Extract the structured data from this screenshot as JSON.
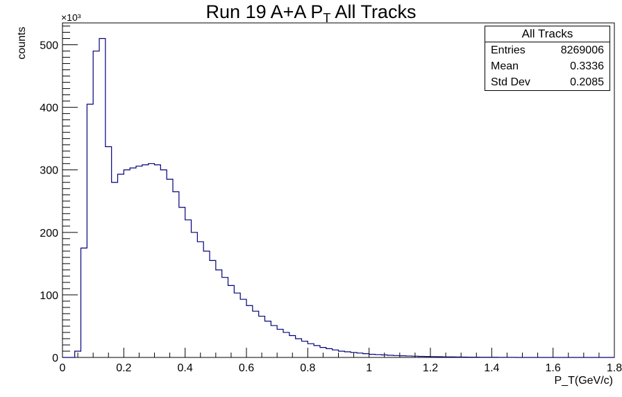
{
  "title": {
    "main": "Run 19 A+A P",
    "sub": "T",
    "rest": " All Tracks"
  },
  "stats": {
    "name": "All Tracks",
    "rows": [
      {
        "label": "Entries",
        "value": "8269006"
      },
      {
        "label": "Mean",
        "value": "0.3336"
      },
      {
        "label": "Std Dev",
        "value": "0.2085"
      }
    ]
  },
  "chart_data": {
    "type": "histogram",
    "title": "Run 19 A+A P_T All Tracks",
    "xlabel": "P_T(GeV/c)",
    "ylabel": "counts",
    "y_exponent": "×10³",
    "xlim": [
      0,
      1.8
    ],
    "ylim": [
      0,
      535
    ],
    "x_ticks": [
      "0",
      "0.2",
      "0.4",
      "0.6",
      "0.8",
      "1",
      "1.2",
      "1.4",
      "1.6",
      "1.8"
    ],
    "y_ticks": [
      "0",
      "100",
      "200",
      "300",
      "400",
      "500"
    ],
    "bin_width": 0.02,
    "x_start": 0.0,
    "values": [
      0,
      0,
      10,
      175,
      405,
      490,
      510,
      337,
      280,
      293,
      300,
      303,
      306,
      308,
      310,
      308,
      300,
      285,
      265,
      240,
      220,
      200,
      185,
      170,
      155,
      140,
      128,
      115,
      103,
      93,
      83,
      74,
      66,
      58,
      51,
      45,
      40,
      35,
      30,
      26,
      22,
      19,
      16,
      14,
      12,
      10,
      9,
      8,
      7,
      6,
      5,
      4.5,
      4,
      3.5,
      3,
      2.6,
      2.3,
      2,
      1.7,
      1.5,
      1.3,
      1.1,
      0.9,
      0.8,
      0.7,
      0.6,
      0.5,
      0.4,
      0.35,
      0.3,
      0.25,
      0.2,
      0.15,
      0.1,
      0,
      0,
      0,
      0,
      0,
      0,
      0,
      0,
      0,
      0,
      0,
      0,
      0,
      0,
      0,
      0
    ],
    "line_color": "#00007a",
    "grid": false,
    "legend": "top-right stats box"
  }
}
